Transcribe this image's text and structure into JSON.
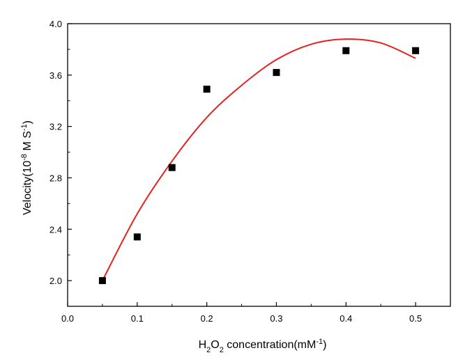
{
  "chart_data": {
    "type": "scatter",
    "xlabel": {
      "parts": [
        {
          "text": "H",
          "sub": false
        },
        {
          "text": "2",
          "sub": true
        },
        {
          "text": "O",
          "sub": false
        },
        {
          "text": "2",
          "sub": true
        },
        {
          "text": " concentration(mM",
          "sub": false
        },
        {
          "text": "-1",
          "sup": true
        },
        {
          "text": ")",
          "sub": false
        }
      ]
    },
    "ylabel": {
      "parts": [
        {
          "text": "Velocity(10",
          "sub": false
        },
        {
          "text": "-8",
          "sup": true
        },
        {
          "text": " M S",
          "sub": false
        },
        {
          "text": "-1",
          "sup": true
        },
        {
          "text": ")",
          "sub": false
        }
      ]
    },
    "xlim": [
      0.0,
      0.55
    ],
    "ylim": [
      1.8,
      4.0
    ],
    "xticks": [
      0.0,
      0.1,
      0.2,
      0.3,
      0.4,
      0.5
    ],
    "xtick_labels": [
      "0.0",
      "0.1",
      "0.2",
      "0.3",
      "0.4",
      "0.5"
    ],
    "yticks": [
      2.0,
      2.4,
      2.8,
      3.2,
      3.6,
      4.0
    ],
    "ytick_labels": [
      "2.0",
      "2.4",
      "2.8",
      "3.2",
      "3.6",
      "4.0"
    ],
    "grid": false,
    "series": [
      {
        "kind": "points",
        "marker": "square",
        "color": "#000000",
        "x": [
          0.05,
          0.1,
          0.15,
          0.2,
          0.3,
          0.4,
          0.5
        ],
        "y": [
          2.0,
          2.34,
          2.88,
          3.49,
          3.62,
          3.79,
          3.79
        ]
      },
      {
        "kind": "fit",
        "color": "#e8201c",
        "x": [
          0.05,
          0.1,
          0.15,
          0.2,
          0.25,
          0.3,
          0.35,
          0.4,
          0.45,
          0.5
        ],
        "y": [
          2.0,
          2.52,
          2.93,
          3.27,
          3.52,
          3.72,
          3.84,
          3.88,
          3.85,
          3.73
        ]
      }
    ]
  }
}
